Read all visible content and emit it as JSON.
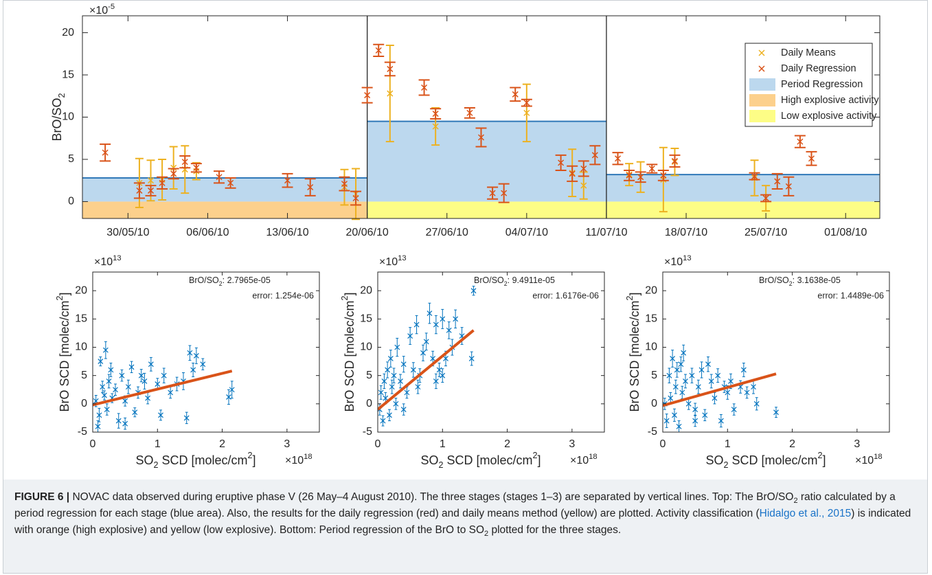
{
  "chart_data": [
    {
      "type": "errorbar",
      "ylabel": [
        {
          "text": "BrO/SO"
        },
        {
          "sub": "2"
        }
      ],
      "y_multiplier": {
        "base": "×10",
        "exponent": "-5"
      },
      "xlim": [
        "26/05/10",
        "04/08/10"
      ],
      "xticks": [
        "30/05/10",
        "06/06/10",
        "13/06/10",
        "20/06/10",
        "27/06/10",
        "04/07/10",
        "11/07/10",
        "18/07/10",
        "25/07/10",
        "01/08/10"
      ],
      "ylim": [
        -2,
        22
      ],
      "yticks": [
        0,
        5,
        10,
        15,
        20
      ],
      "legend": "upper right",
      "series": [
        {
          "name": "Daily Means",
          "color": "#EDB120",
          "x": [
            "31/05/10",
            "01/06/10",
            "02/06/10",
            "03/06/10",
            "04/06/10",
            "05/06/10",
            "18/06/10",
            "19/06/10",
            "22/06/10",
            "26/06/10",
            "04/07/10",
            "08/07/10",
            "09/07/10",
            "13/07/10",
            "14/07/10",
            "16/07/10",
            "17/07/10",
            "24/07/10",
            "25/07/10"
          ],
          "values": [
            2.2,
            2.5,
            2.6,
            4.0,
            3.8,
            3.6,
            1.7,
            0.9,
            12.8,
            8.9,
            10.5,
            3.4,
            1.9,
            3.2,
            2.9,
            2.6,
            4.7,
            2.8,
            0.4
          ],
          "errors": [
            2.9,
            2.4,
            2.4,
            2.5,
            2.8,
            1.0,
            2.1,
            3.0,
            5.7,
            2.2,
            3.4,
            2.8,
            1.6,
            1.3,
            1.8,
            3.8,
            1.6,
            2.1,
            1.5
          ]
        },
        {
          "name": "Daily Regression",
          "color": "#D95319",
          "x": [
            "28/05/10",
            "31/05/10",
            "01/06/10",
            "02/06/10",
            "03/06/10",
            "04/06/10",
            "05/06/10",
            "07/06/10",
            "08/06/10",
            "13/06/10",
            "15/06/10",
            "18/06/10",
            "19/06/10",
            "20/06/10",
            "21/06/10",
            "22/06/10",
            "25/06/10",
            "26/06/10",
            "29/06/10",
            "30/06/10",
            "01/07/10",
            "02/07/10",
            "03/07/10",
            "04/07/10",
            "07/07/10",
            "08/07/10",
            "09/07/10",
            "10/07/10",
            "12/07/10",
            "13/07/10",
            "14/07/10",
            "15/07/10",
            "16/07/10",
            "17/07/10",
            "24/07/10",
            "25/07/10",
            "26/07/10",
            "27/07/10",
            "28/07/10",
            "29/07/10"
          ],
          "values": [
            5.8,
            1.3,
            1.3,
            2.2,
            3.3,
            4.7,
            4.0,
            2.9,
            2.2,
            2.5,
            1.7,
            2.1,
            0.4,
            12.6,
            17.9,
            15.7,
            13.5,
            10.4,
            10.5,
            7.6,
            1.0,
            1.0,
            12.7,
            11.7,
            4.6,
            3.3,
            3.9,
            5.5,
            5.1,
            3.1,
            2.9,
            3.9,
            3.1,
            4.8,
            3.0,
            0.4,
            2.4,
            1.8,
            7.1,
            5.1
          ],
          "errors": [
            1.0,
            0.9,
            0.6,
            0.7,
            0.6,
            0.7,
            0.5,
            0.7,
            0.6,
            0.8,
            1.0,
            0.8,
            0.8,
            0.9,
            0.7,
            0.8,
            0.9,
            0.6,
            0.6,
            1.1,
            0.7,
            1.1,
            0.8,
            0.4,
            0.9,
            0.9,
            0.9,
            1.1,
            0.7,
            0.6,
            0.6,
            0.5,
            0.6,
            0.7,
            0.4,
            0.4,
            0.9,
            1.1,
            0.7,
            0.8
          ]
        }
      ],
      "period_regression": {
        "name": "Period Regression",
        "color": "#bcd8ee",
        "line_color": "#2f78b8",
        "stage_bounds": [
          "26/05/10",
          "20/06/10",
          "11/07/10",
          "04/08/10"
        ],
        "values": [
          2.8,
          9.5,
          3.2
        ]
      },
      "activity": [
        {
          "name": "High explosive activity",
          "color": "#fcd08c",
          "from": "26/05/10",
          "to": "20/06/10"
        },
        {
          "name": "Low explosive activity",
          "color": "#fdfd86",
          "from": "20/06/10",
          "to": "04/08/10"
        }
      ]
    },
    {
      "type": "scatter",
      "color": "#0072BD",
      "fit_color": "#D95319",
      "ylabel": [
        {
          "text": "BrO SCD [molec/cm"
        },
        {
          "sup": "2"
        },
        {
          "text": "]"
        }
      ],
      "xlabel": [
        {
          "text": "SO"
        },
        {
          "sub": "2"
        },
        {
          "text": " SCD [molec/cm"
        },
        {
          "sup": "2"
        },
        {
          "text": "]"
        }
      ],
      "y_multiplier": {
        "base": "×10",
        "exponent": "13"
      },
      "x_multiplier": {
        "base": "×10",
        "exponent": "18"
      },
      "annotation": {
        "ratio_label": [
          {
            "text": "BrO/SO"
          },
          {
            "sub": "2"
          }
        ],
        "ratio": ": 2.7965e-05",
        "error": "error: 1.254e-06"
      },
      "xlim": [
        0,
        3.5
      ],
      "xticks": [
        0,
        1,
        2,
        3
      ],
      "ylim": [
        -5,
        23.3
      ],
      "yticks": [
        -5,
        0,
        5,
        10,
        15,
        20
      ],
      "x": [
        0.05,
        0.1,
        0.12,
        0.15,
        0.2,
        0.22,
        0.25,
        0.3,
        0.35,
        0.4,
        0.45,
        0.5,
        0.55,
        0.6,
        0.65,
        0.7,
        0.8,
        0.85,
        0.9,
        1.0,
        1.05,
        1.1,
        1.2,
        1.3,
        1.4,
        1.45,
        1.5,
        1.55,
        1.6,
        1.7,
        2.1,
        2.15,
        0.08,
        0.18,
        0.28,
        0.5,
        0.75
      ],
      "y": [
        0.5,
        -2,
        7.5,
        3,
        9.5,
        -1,
        4,
        1,
        2.5,
        -3,
        5,
        0.5,
        3,
        6.5,
        -1.5,
        2,
        4,
        1,
        7,
        3.5,
        -2,
        5,
        2,
        3.5,
        4,
        -2.5,
        9,
        6,
        8.5,
        7,
        1.2,
        2.5,
        -4,
        1.5,
        6,
        -3.5,
        5
      ],
      "errors": [
        1,
        1.2,
        0.8,
        1,
        1.5,
        1,
        1.2,
        0.8,
        1,
        1.3,
        1,
        0.9,
        1.2,
        1,
        0.8,
        1,
        1.4,
        1,
        1.2,
        1,
        0.9,
        1.3,
        1,
        1.2,
        1.5,
        1,
        1.3,
        1.2,
        1.4,
        1,
        1.3,
        1.5,
        1,
        0.8,
        1.2,
        1,
        1.1
      ],
      "fit": {
        "x": [
          0,
          2.15
        ],
        "y": [
          -0.2,
          5.8
        ]
      }
    },
    {
      "type": "scatter",
      "color": "#0072BD",
      "fit_color": "#D95319",
      "ylabel": [
        {
          "text": "BrO SCD [molec/cm"
        },
        {
          "sup": "2"
        },
        {
          "text": "]"
        }
      ],
      "xlabel": [
        {
          "text": "SO"
        },
        {
          "sub": "2"
        },
        {
          "text": " SCD [molec/cm"
        },
        {
          "sup": "2"
        },
        {
          "text": "]"
        }
      ],
      "y_multiplier": {
        "base": "×10",
        "exponent": "13"
      },
      "x_multiplier": {
        "base": "×10",
        "exponent": "18"
      },
      "annotation": {
        "ratio_label": [
          {
            "text": "BrO/SO"
          },
          {
            "sub": "2"
          }
        ],
        "ratio": ": 9.4911e-05",
        "error": "error: 1.6176e-06"
      },
      "xlim": [
        0,
        3.5
      ],
      "xticks": [
        0,
        1,
        2,
        3
      ],
      "ylim": [
        -5,
        23.3
      ],
      "yticks": [
        -5,
        0,
        5,
        10,
        15,
        20
      ],
      "x": [
        0.03,
        0.05,
        0.08,
        0.1,
        0.12,
        0.15,
        0.18,
        0.2,
        0.22,
        0.25,
        0.28,
        0.3,
        0.35,
        0.4,
        0.45,
        0.5,
        0.55,
        0.6,
        0.65,
        0.7,
        0.75,
        0.8,
        0.85,
        0.9,
        0.95,
        1.0,
        1.05,
        1.1,
        1.15,
        1.2,
        1.3,
        1.45,
        1.48,
        0.62,
        0.9,
        0.4,
        1.0
      ],
      "y": [
        -1,
        2,
        -3,
        4,
        1,
        6,
        -2,
        8,
        3,
        5,
        0,
        10,
        4,
        7,
        2,
        12,
        6,
        14,
        5,
        9,
        11,
        16,
        8,
        14,
        6,
        15,
        8,
        13,
        10,
        15,
        12,
        8,
        20,
        3,
        4,
        -1,
        5
      ],
      "errors": [
        1,
        1.2,
        0.9,
        1.3,
        1,
        1.4,
        1,
        1.5,
        1.2,
        1.3,
        1,
        1.6,
        1.2,
        1.4,
        1,
        1.5,
        1.3,
        1.6,
        1.2,
        1.4,
        1.5,
        1.8,
        1.3,
        1.6,
        1.2,
        1.7,
        1.3,
        1.5,
        1.4,
        1.6,
        1.5,
        1.2,
        0.8,
        1.2,
        1.3,
        1,
        1.2
      ],
      "fit": {
        "x": [
          0,
          1.48
        ],
        "y": [
          -1,
          13
        ]
      }
    },
    {
      "type": "scatter",
      "color": "#0072BD",
      "fit_color": "#D95319",
      "ylabel": [
        {
          "text": "BrO SCD [molec/cm"
        },
        {
          "sup": "2"
        },
        {
          "text": "]"
        }
      ],
      "xlabel": [
        {
          "text": "SO"
        },
        {
          "sub": "2"
        },
        {
          "text": " SCD [molec/cm"
        },
        {
          "sup": "2"
        },
        {
          "text": "]"
        }
      ],
      "y_multiplier": {
        "base": "×10",
        "exponent": "13"
      },
      "x_multiplier": {
        "base": "×10",
        "exponent": "18"
      },
      "annotation": {
        "ratio_label": [
          {
            "text": "BrO/SO"
          },
          {
            "sub": "2"
          }
        ],
        "ratio": ": 3.1638e-05",
        "error": "error: 1.4489e-06"
      },
      "xlim": [
        0,
        3.5
      ],
      "xticks": [
        0,
        1,
        2,
        3
      ],
      "ylim": [
        -5,
        23.3
      ],
      "yticks": [
        -5,
        0,
        5,
        10,
        15,
        20
      ],
      "x": [
        0.03,
        0.06,
        0.1,
        0.12,
        0.15,
        0.18,
        0.2,
        0.22,
        0.25,
        0.3,
        0.32,
        0.35,
        0.4,
        0.45,
        0.5,
        0.55,
        0.6,
        0.65,
        0.7,
        0.75,
        0.8,
        0.85,
        0.9,
        0.95,
        1.0,
        1.05,
        1.1,
        1.2,
        1.25,
        1.3,
        1.4,
        1.45,
        1.75,
        0.28,
        0.5
      ],
      "y": [
        0,
        -3,
        5,
        1,
        8,
        -2,
        3,
        6,
        -4,
        2,
        9,
        4,
        0,
        5,
        -1,
        3,
        6,
        -2,
        7,
        4,
        1,
        5,
        -3,
        3,
        2,
        4,
        -1,
        3,
        6,
        2,
        3,
        0,
        -1.5,
        7,
        -3
      ],
      "errors": [
        1,
        1.2,
        1.3,
        1,
        1.5,
        1.1,
        1.2,
        1.3,
        1,
        1.1,
        1.4,
        1.2,
        1,
        1.3,
        1.1,
        1.2,
        1.4,
        1,
        1.3,
        1.2,
        1,
        1.2,
        1.1,
        1,
        1.2,
        1.3,
        1,
        1.1,
        1.2,
        1,
        1.2,
        1.1,
        0.9,
        1.3,
        1
      ],
      "fit": {
        "x": [
          0,
          1.75
        ],
        "y": [
          -0.3,
          5.3
        ]
      }
    }
  ],
  "caption": {
    "label": "FIGURE 6 |",
    "parts": [
      " NOVAC data observed during eruptive phase V (26 May–4 August 2010). The three stages (stages 1–3) are separated by vertical lines. Top: The BrO/SO",
      "2",
      " ratio calculated by a period regression for each stage (blue area). Also, the results for the daily regression (red) and daily means method (yellow) are plotted. Activity classification (",
      "Hidalgo et al., 2015",
      ") is indicated with orange (high explosive) and yellow (low explosive). Bottom: Period regression of the BrO to SO",
      "2",
      " plotted for the three stages."
    ]
  }
}
